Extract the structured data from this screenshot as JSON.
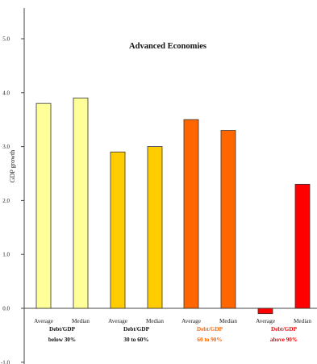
{
  "chart_data": {
    "type": "bar",
    "title": "Advanced Economies",
    "ylabel": "GDP growth",
    "ylim": [
      -1.0,
      5.5
    ],
    "yticks": [
      "-1.0",
      "0.0",
      "1.0",
      "2.0",
      "3.0",
      "4.0",
      "5.0"
    ],
    "categories": [
      "Average",
      "Median",
      "Average",
      "Median",
      "Average",
      "Median",
      "Average",
      "Median"
    ],
    "values": [
      3.8,
      3.9,
      2.9,
      3.0,
      3.5,
      3.3,
      -0.1,
      2.3
    ],
    "bar_colors": [
      "#ffff99",
      "#ffff99",
      "#ffcc00",
      "#ffcc00",
      "#ff6600",
      "#ff6600",
      "#ff0000",
      "#ff0000"
    ],
    "groups": [
      {
        "line1": "Debt/GDP",
        "line2": "below 30%",
        "color": "#111111"
      },
      {
        "line1": "Debt/GDP",
        "line2": "30 to 60%",
        "color": "#111111"
      },
      {
        "line1": "Debt/GDP",
        "line2": "60 to 90%",
        "color": "#ff6600"
      },
      {
        "line1": "Debt/GDP",
        "line2": "above 90%",
        "color": "#ff0000"
      }
    ],
    "grid": false
  }
}
